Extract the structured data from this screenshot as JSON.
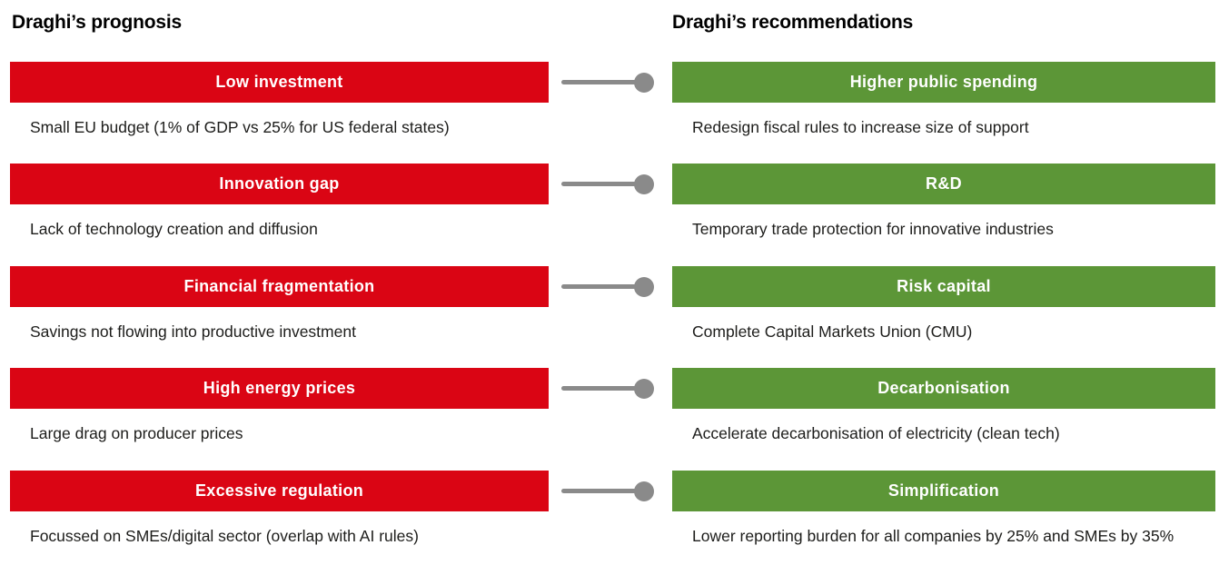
{
  "left": {
    "title": "Draghi’s prognosis",
    "items": [
      {
        "label": "Low investment",
        "description": "Small EU budget (1% of GDP vs 25% for US federal states)"
      },
      {
        "label": "Innovation gap",
        "description": "Lack of technology creation and diffusion"
      },
      {
        "label": "Financial fragmentation",
        "description": "Savings not flowing into productive investment"
      },
      {
        "label": "High energy prices",
        "description": "Large drag on producer prices"
      },
      {
        "label": "Excessive regulation",
        "description": "Focussed on SMEs/digital sector (overlap with AI rules)"
      }
    ]
  },
  "right": {
    "title": "Draghi’s recommendations",
    "items": [
      {
        "label": "Higher public spending",
        "description": "Redesign fiscal rules to increase size of support"
      },
      {
        "label": "R&D",
        "description": "Temporary trade protection for innovative industries"
      },
      {
        "label": "Risk capital",
        "description": "Complete Capital Markets Union (CMU)"
      },
      {
        "label": "Decarbonisation",
        "description": "Accelerate decarbonisation of electricity (clean tech)"
      },
      {
        "label": "Simplification",
        "description": "Lower reporting burden for all companies by 25% and SMEs by 35%"
      }
    ]
  },
  "colors": {
    "prognosis_band": "#da0514",
    "recommendation_band": "#5c9637",
    "connector": "#8a8a8a",
    "band_text": "#ffffff",
    "body_text": "#1d1d1b"
  }
}
